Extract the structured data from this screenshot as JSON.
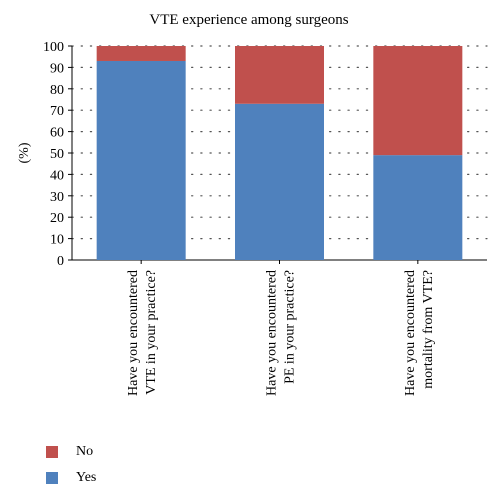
{
  "colors": {
    "yes": "#4f81bd",
    "no": "#c0504d"
  },
  "chart_data": {
    "type": "bar",
    "stacked": true,
    "title": "VTE experience among surgeons",
    "ylabel": "(%)",
    "xlabel": "",
    "ylim": [
      0,
      100
    ],
    "yticks": [
      0,
      10,
      20,
      30,
      40,
      50,
      60,
      70,
      80,
      90,
      100
    ],
    "grid": "dotted horizontal",
    "legend_position": "bottom-left",
    "categories": [
      [
        "Have you encountered",
        "VTE in your practice?"
      ],
      [
        "Have you encountered",
        "PE in your practice?"
      ],
      [
        "Have you encountered",
        "mortality from VTE?"
      ]
    ],
    "series": [
      {
        "name": "Yes",
        "values": [
          93,
          73,
          49
        ]
      },
      {
        "name": "No",
        "values": [
          7,
          27,
          51
        ]
      }
    ],
    "legend": [
      {
        "label": "No",
        "color_key": "no"
      },
      {
        "label": "Yes",
        "color_key": "yes"
      }
    ]
  }
}
